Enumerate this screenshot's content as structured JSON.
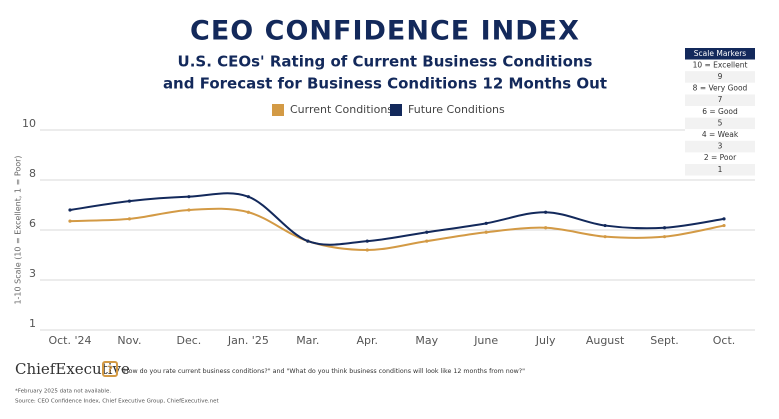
{
  "chart_data": {
    "type": "line",
    "title": "CEO CONFIDENCE INDEX",
    "subtitle": [
      "U.S. CEOs' Rating of Current Business Conditions",
      "and Forecast for Business Conditions 12 Months Out"
    ],
    "y_label": "1-10 Scale (10 = Excellent, 1 = Poor)",
    "categories": [
      "Oct. '24",
      "Nov.",
      "Dec.",
      "Jan. '25",
      "Mar.",
      "Apr.",
      "May",
      "June",
      "July",
      "August",
      "Sept.",
      "Oct."
    ],
    "series": [
      {
        "name": "Current Conditions",
        "color": "#d39a45",
        "values": [
          5.9,
          6.0,
          6.4,
          6.3,
          5.0,
          4.6,
          5.0,
          5.4,
          5.6,
          5.2,
          5.2,
          5.7
        ]
      },
      {
        "name": "Future Conditions",
        "color": "#13295b",
        "values": [
          6.4,
          6.8,
          7.0,
          7.0,
          5.0,
          5.0,
          5.4,
          5.8,
          6.3,
          5.7,
          5.6,
          6.0
        ]
      }
    ],
    "ylim": [
      1,
      10
    ],
    "yticks": [
      1,
      {
        "value": 3.25,
        "label": "3"
      },
      {
        "value": 5.5,
        "label": "6"
      },
      {
        "value": 7.75,
        "label": "8"
      },
      10
    ],
    "grid": true
  },
  "scale_markers": {
    "title": "Scale Markers",
    "items": [
      "10 = Excellent",
      "9",
      "8 = Very Good",
      "7",
      "6 = Good",
      "5",
      "4 = Weak",
      "3",
      "2 = Poor",
      "1"
    ]
  },
  "footer": {
    "brand": "ChiefExecutive",
    "icon": "?",
    "question": "\"How do you rate current business conditions?\" and \"What do you think business conditions will look like 12 months from now?\"",
    "note": "*February 2025 data not available.",
    "source": "Source: CEO Confidence Index, Chief Executive Group, ChiefExecutive.net"
  }
}
